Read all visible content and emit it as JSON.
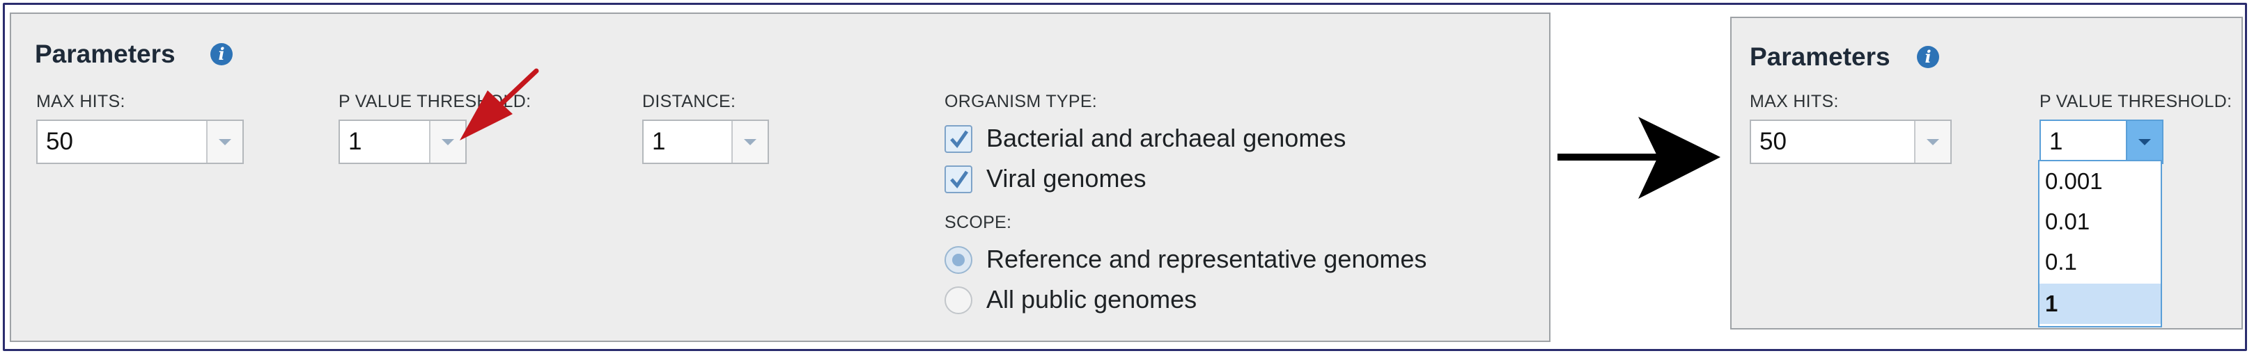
{
  "left_panel": {
    "title": "Parameters",
    "max_hits": {
      "label": "MAX HITS:",
      "value": "50"
    },
    "p_value_threshold": {
      "label": "P VALUE THRESHOLD:",
      "value": "1"
    },
    "distance": {
      "label": "DISTANCE:",
      "value": "1"
    },
    "organism_type": {
      "label": "ORGANISM TYPE:",
      "options": [
        {
          "label": "Bacterial and archaeal genomes",
          "checked": true
        },
        {
          "label": "Viral genomes",
          "checked": true
        }
      ]
    },
    "scope": {
      "label": "SCOPE:",
      "options": [
        {
          "label": "Reference and representative genomes",
          "selected": true
        },
        {
          "label": "All public genomes",
          "selected": false
        }
      ]
    }
  },
  "right_panel": {
    "title": "Parameters",
    "max_hits": {
      "label": "MAX HITS:",
      "value": "50"
    },
    "p_value_threshold": {
      "label": "P VALUE THRESHOLD:",
      "value": "1",
      "options": [
        "0.001",
        "0.01",
        "0.1",
        "1"
      ],
      "selected": "1"
    }
  },
  "colors": {
    "frame_border": "#2b2d6e",
    "panel_bg": "#ededed",
    "info_icon": "#2d73b6",
    "annotation_arrow": "#c4161c",
    "transition_arrow": "#000000",
    "open_select_accent": "#6fb4ec"
  },
  "icons": {
    "info": "info-icon",
    "dropdown": "chevron-down-icon",
    "check": "checkmark-icon"
  }
}
